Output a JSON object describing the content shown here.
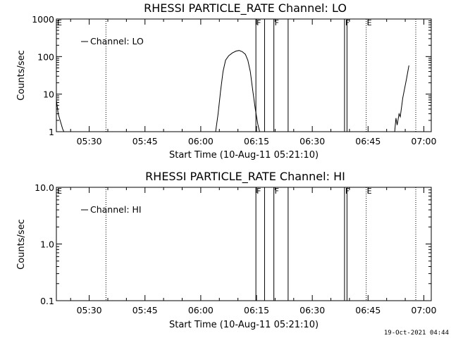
{
  "chart_data": [
    {
      "type": "line",
      "title": "RHESSI PARTICLE_RATE Channel: LO",
      "xlabel": "Start Time (10-Aug-11 05:21:10)",
      "ylabel": "Counts/sec",
      "yscale": "log",
      "ylim": [
        1,
        1000
      ],
      "xlim": [
        "05:21:10",
        "07:02:00"
      ],
      "x_ticks": [
        "05:30",
        "05:45",
        "06:00",
        "06:15",
        "06:30",
        "06:45",
        "07:00"
      ],
      "y_ticks": [
        "1",
        "10",
        "100",
        "1000"
      ],
      "legend": "top-left",
      "series": [
        {
          "name": "Channel: LO",
          "points": [
            [
              "05:21:10",
              7
            ],
            [
              "05:21:40",
              3
            ],
            [
              "05:22:10",
              2
            ],
            [
              "05:22:50",
              1.2
            ],
            [
              "05:23:10",
              1
            ],
            [
              "06:04:00",
              1
            ],
            [
              "06:04:40",
              3
            ],
            [
              "06:05:20",
              12
            ],
            [
              "06:06:00",
              40
            ],
            [
              "06:06:40",
              80
            ],
            [
              "06:07:30",
              105
            ],
            [
              "06:08:30",
              125
            ],
            [
              "06:09:30",
              140
            ],
            [
              "06:10:20",
              145
            ],
            [
              "06:11:10",
              135
            ],
            [
              "06:12:00",
              115
            ],
            [
              "06:12:40",
              80
            ],
            [
              "06:13:20",
              40
            ],
            [
              "06:14:00",
              12
            ],
            [
              "06:14:40",
              4
            ],
            [
              "06:15:20",
              1.6
            ],
            [
              "06:15:50",
              1
            ],
            [
              "06:52:10",
              1
            ],
            [
              "06:52:30",
              2.3
            ],
            [
              "06:52:50",
              1.5
            ],
            [
              "06:53:20",
              3
            ],
            [
              "06:53:40",
              2.5
            ],
            [
              "06:54:20",
              8
            ],
            [
              "06:55:20",
              25
            ],
            [
              "06:56:00",
              58
            ]
          ]
        }
      ]
    },
    {
      "type": "line",
      "title": "RHESSI PARTICLE_RATE Channel: HI",
      "xlabel": "Start Time (10-Aug-11 05:21:10)",
      "ylabel": "Counts/sec",
      "yscale": "log",
      "ylim": [
        0.1,
        10.0
      ],
      "xlim": [
        "05:21:10",
        "07:02:00"
      ],
      "x_ticks": [
        "05:30",
        "05:45",
        "06:00",
        "06:15",
        "06:30",
        "06:45",
        "07:00"
      ],
      "y_ticks": [
        "0.1",
        "1.0",
        "10.0"
      ],
      "legend": "top-left",
      "series": [
        {
          "name": "Channel: HI",
          "points": []
        }
      ]
    }
  ],
  "markers": [
    {
      "t": "05:21:10",
      "label": "E",
      "style": "dotted"
    },
    {
      "t": "05:34:30",
      "label": "",
      "style": "dotted"
    },
    {
      "t": "06:14:50",
      "label": "F",
      "style": "solid"
    },
    {
      "t": "06:17:10",
      "label": "",
      "style": "solid"
    },
    {
      "t": "06:19:40",
      "label": "F",
      "style": "solid"
    },
    {
      "t": "06:23:30",
      "label": "",
      "style": "solid"
    },
    {
      "t": "06:38:40",
      "label": "F",
      "style": "solid"
    },
    {
      "t": "06:39:20",
      "label": "",
      "style": "solid"
    },
    {
      "t": "06:44:30",
      "label": "E",
      "style": "dotted"
    },
    {
      "t": "06:57:50",
      "label": "",
      "style": "dotted"
    }
  ],
  "footer": {
    "timestamp": "19-Oct-2021 04:44"
  }
}
